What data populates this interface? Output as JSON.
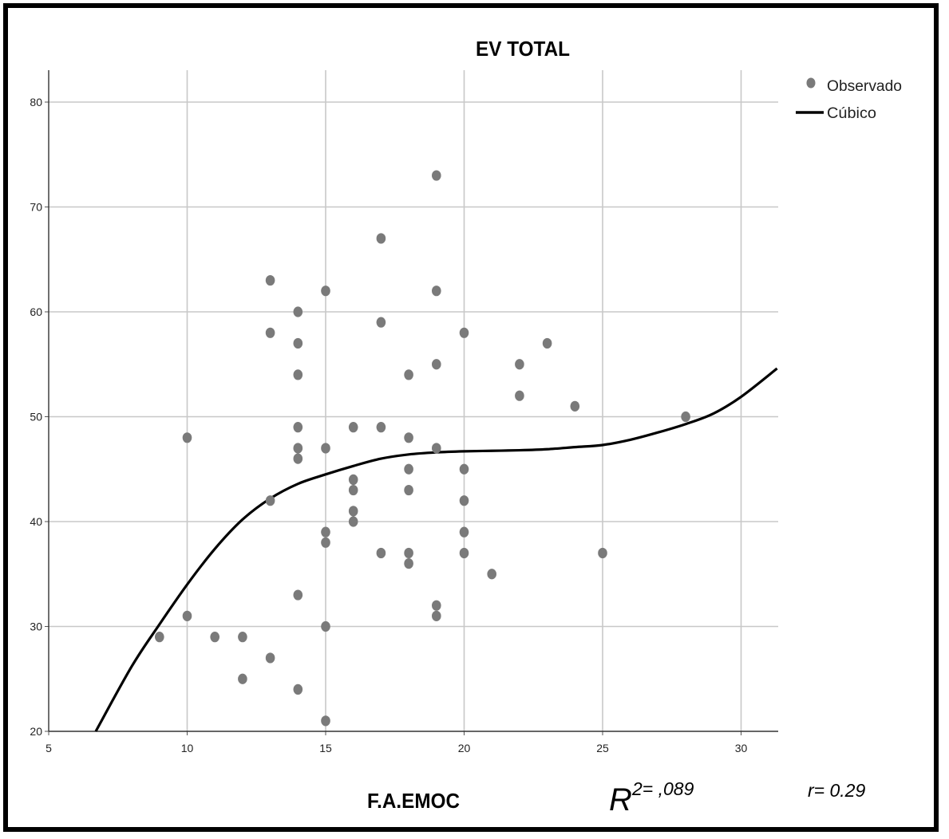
{
  "chart_data": {
    "type": "scatter",
    "title": "EV TOTAL",
    "xlabel": "F.A.EMOC",
    "ylabel": "",
    "xlim": [
      5,
      31.3
    ],
    "ylim": [
      20,
      83
    ],
    "x_ticks": [
      "5",
      "10",
      "15",
      "20",
      "25",
      "30"
    ],
    "y_ticks": [
      "20",
      "30",
      "40",
      "50",
      "60",
      "70",
      "80"
    ],
    "grid": true,
    "legend": {
      "position": "top-right",
      "entries": [
        {
          "label": "Observado",
          "marker": "circle"
        },
        {
          "label": "Cúbico",
          "marker": "line"
        }
      ]
    },
    "series": [
      {
        "name": "Observado",
        "kind": "points",
        "color": "#7a7a7a",
        "points": [
          [
            9,
            29
          ],
          [
            10,
            48
          ],
          [
            10,
            31
          ],
          [
            11,
            29
          ],
          [
            12,
            29
          ],
          [
            12,
            25
          ],
          [
            13,
            63
          ],
          [
            13,
            58
          ],
          [
            13,
            42
          ],
          [
            13,
            27
          ],
          [
            14,
            60
          ],
          [
            14,
            57
          ],
          [
            14,
            54
          ],
          [
            14,
            49
          ],
          [
            14,
            47
          ],
          [
            14,
            46
          ],
          [
            14,
            33
          ],
          [
            14,
            24
          ],
          [
            15,
            62
          ],
          [
            15,
            47
          ],
          [
            15,
            39
          ],
          [
            15,
            38
          ],
          [
            15,
            30
          ],
          [
            15,
            21
          ],
          [
            16,
            49
          ],
          [
            16,
            44
          ],
          [
            16,
            43
          ],
          [
            16,
            41
          ],
          [
            16,
            40
          ],
          [
            17,
            67
          ],
          [
            17,
            59
          ],
          [
            17,
            49
          ],
          [
            17,
            37
          ],
          [
            18,
            54
          ],
          [
            18,
            48
          ],
          [
            18,
            45
          ],
          [
            18,
            43
          ],
          [
            18,
            37
          ],
          [
            18,
            36
          ],
          [
            19,
            73
          ],
          [
            19,
            62
          ],
          [
            19,
            55
          ],
          [
            19,
            47
          ],
          [
            19,
            32
          ],
          [
            19,
            31
          ],
          [
            20,
            58
          ],
          [
            20,
            45
          ],
          [
            20,
            42
          ],
          [
            20,
            39
          ],
          [
            20,
            37
          ],
          [
            21,
            35
          ],
          [
            22,
            55
          ],
          [
            22,
            52
          ],
          [
            23,
            57
          ],
          [
            24,
            51
          ],
          [
            25,
            37
          ],
          [
            28,
            50
          ]
        ]
      },
      {
        "name": "Cúbico",
        "kind": "curve",
        "color": "#000000",
        "points": [
          [
            6.7,
            20
          ],
          [
            8,
            26.2
          ],
          [
            9,
            30.2
          ],
          [
            10,
            34
          ],
          [
            11,
            37.4
          ],
          [
            12,
            40.2
          ],
          [
            13,
            42.2
          ],
          [
            14,
            43.6
          ],
          [
            15,
            44.5
          ],
          [
            16,
            45.3
          ],
          [
            17,
            46
          ],
          [
            18,
            46.4
          ],
          [
            19,
            46.6
          ],
          [
            20,
            46.7
          ],
          [
            21,
            46.75
          ],
          [
            22,
            46.8
          ],
          [
            23,
            46.9
          ],
          [
            24,
            47.1
          ],
          [
            25,
            47.3
          ],
          [
            26,
            47.8
          ],
          [
            27,
            48.5
          ],
          [
            28,
            49.3
          ],
          [
            29,
            50.3
          ],
          [
            30,
            51.9
          ],
          [
            31.3,
            54.6
          ]
        ]
      }
    ],
    "annotations": {
      "r2_symbol": "R",
      "r2_value": "2= ,089",
      "r_text": "r= 0.29"
    }
  }
}
